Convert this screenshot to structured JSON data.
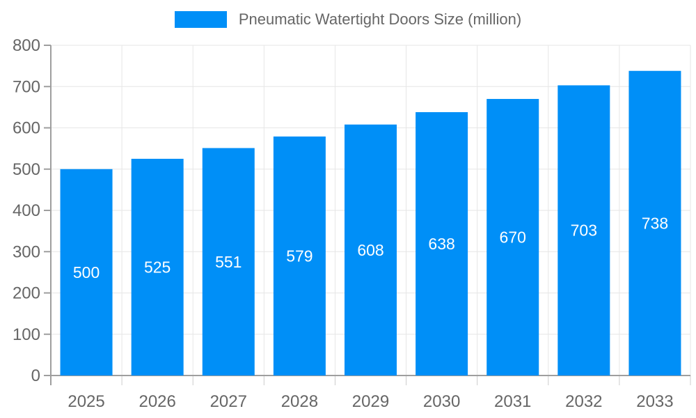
{
  "legend": {
    "label": "Pneumatic Watertight Doors Size (million)"
  },
  "colors": {
    "bar": "#008FF7",
    "grid": "#e6e6e6",
    "axis": "#9e9e9e",
    "minor_tick": "#cccccc",
    "tick_text": "#666666",
    "value_label": "#ffffff",
    "background": "#ffffff"
  },
  "chart_data": {
    "type": "bar",
    "categories": [
      "2025",
      "2026",
      "2027",
      "2028",
      "2029",
      "2030",
      "2031",
      "2032",
      "2033"
    ],
    "series": [
      {
        "name": "Pneumatic Watertight Doors Size (million)",
        "values": [
          500,
          525,
          551,
          579,
          608,
          638,
          670,
          703,
          738
        ]
      }
    ],
    "title": "",
    "xlabel": "",
    "ylabel": "",
    "ylim": [
      0,
      800
    ],
    "ytick_step": 100,
    "grid": true,
    "legend_position": "top",
    "value_labels": "inside-center"
  }
}
